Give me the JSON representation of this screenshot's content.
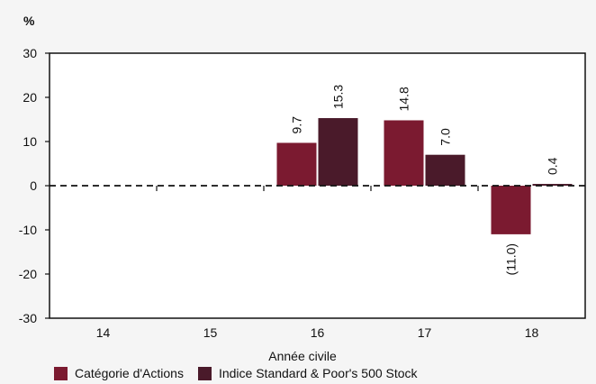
{
  "chart_data": {
    "type": "bar",
    "unit_label": "%",
    "xlabel": "Année civile",
    "categories": [
      "14",
      "15",
      "16",
      "17",
      "18"
    ],
    "ylim": [
      -30,
      30
    ],
    "yticks": [
      30,
      20,
      10,
      0,
      -10,
      -20,
      -30
    ],
    "grid": false,
    "legend_position": "bottom-left",
    "series": [
      {
        "name": "Catégorie d'Actions",
        "color": "#7b1a30",
        "values": [
          null,
          null,
          9.7,
          14.8,
          -11.0
        ],
        "labels": [
          "",
          "",
          "9.7",
          "14.8",
          "(11.0)"
        ]
      },
      {
        "name": "Indice Standard & Poor's 500 Stock",
        "color": "#4a1a2a",
        "values": [
          null,
          null,
          15.3,
          7.0,
          0.4
        ],
        "labels": [
          "",
          "",
          "15.3",
          "7.0",
          "0.4"
        ]
      }
    ]
  }
}
